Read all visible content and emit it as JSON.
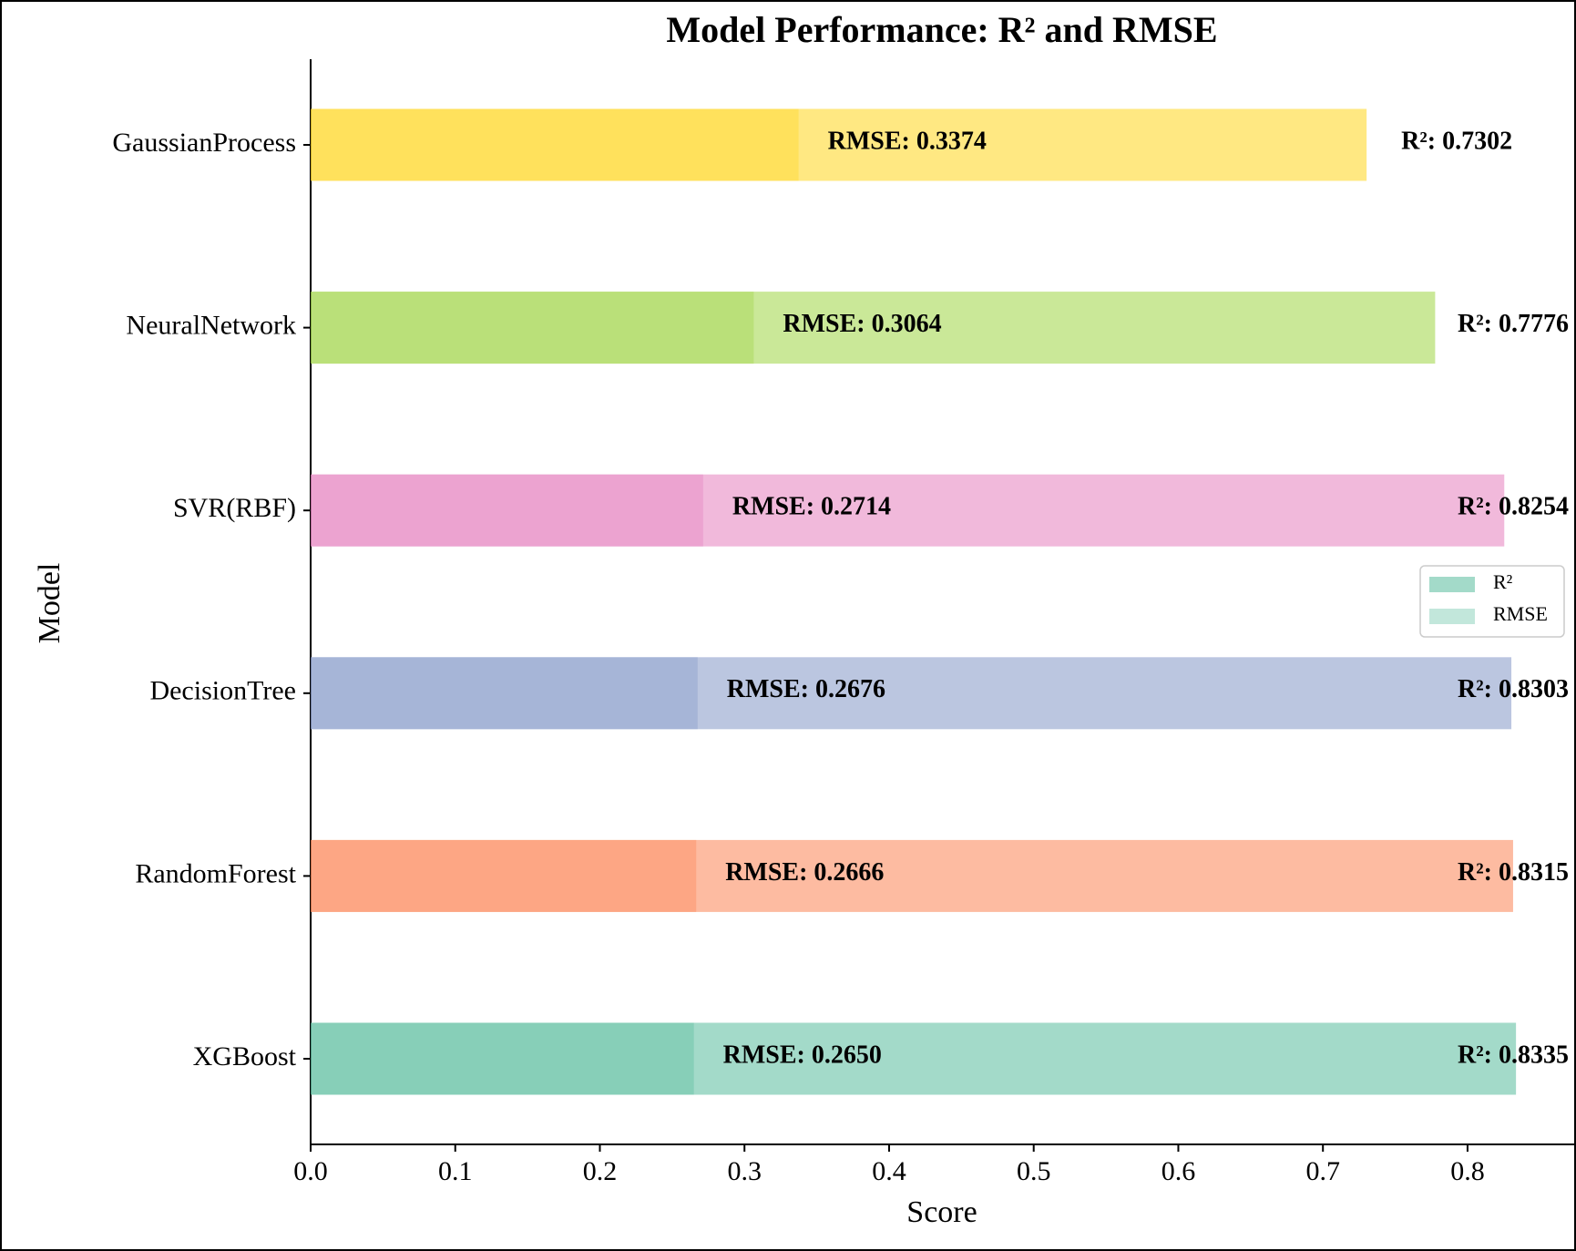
{
  "chart_data": {
    "type": "overlapping-hbar",
    "title": "Model Performance: R² and RMSE",
    "x_label": "Score",
    "y_label": "Model",
    "categories": [
      "XGBoost",
      "RandomForest",
      "DecisionTree",
      "SVR(RBF)",
      "NeuralNetwork",
      "GaussianProcess"
    ],
    "colors": [
      "#66c2a5",
      "#fc8d62",
      "#8da0cb",
      "#e78ac3",
      "#a6d854",
      "#ffd92f"
    ],
    "series": [
      {
        "name": "R²",
        "color": "#66c2a5",
        "values": [
          0.8335,
          0.8315,
          0.8303,
          0.8254,
          0.7776,
          0.7302
        ],
        "value_labels": [
          "R²: 0.8335",
          "R²: 0.8315",
          "R²: 0.8303",
          "R²: 0.8254",
          "R²: 0.7776",
          "R²: 0.7302"
        ]
      },
      {
        "name": "RMSE",
        "color": "#66c2a5",
        "values": [
          0.265,
          0.2666,
          0.2676,
          0.2714,
          0.3064,
          0.3374
        ],
        "value_labels": [
          "RMSE: 0.2650",
          "RMSE: 0.2666",
          "RMSE: 0.2676",
          "RMSE: 0.2714",
          "RMSE: 0.3064",
          "RMSE: 0.3374"
        ]
      }
    ],
    "xlim": [
      0,
      0.875
    ],
    "xticks": [
      {
        "value": 0,
        "label": "0.0"
      },
      0.1,
      0.2,
      0.3,
      0.4,
      0.5,
      0.6,
      0.7,
      0.8
    ],
    "legend": "right"
  }
}
